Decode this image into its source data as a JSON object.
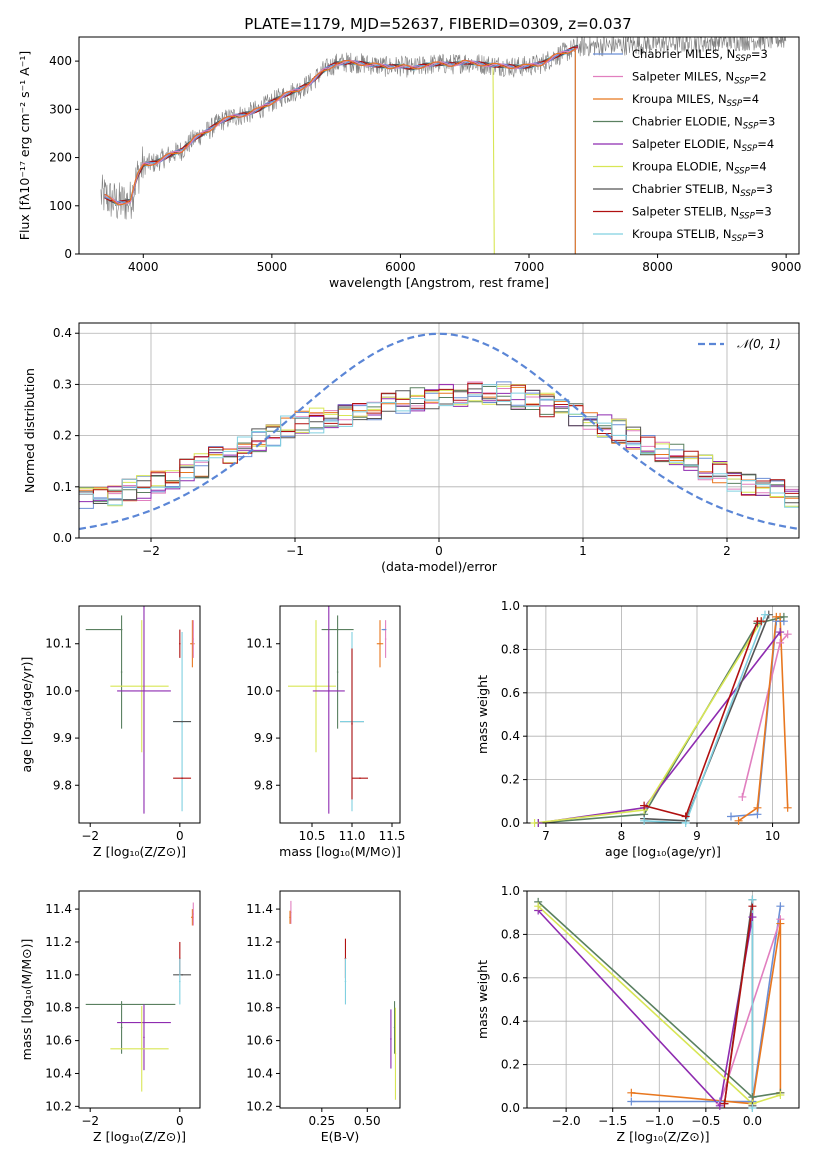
{
  "figure_title": "PLATE=1179, MJD=52637, FIBERID=0309, z=0.037",
  "colors": {
    "Chabrier MILES": "#6b8fd6",
    "Salpeter MILES": "#e17fbf",
    "Kroupa MILES": "#e8771f",
    "Chabrier ELODIE": "#5a8060",
    "Salpeter ELODIE": "#8e2bb0",
    "Kroupa ELODIE": "#d8e655",
    "Chabrier STELIB": "#555555",
    "Salpeter STELIB": "#b01010",
    "Kroupa STELIB": "#80d0e0",
    "data": "#808080",
    "normal": "#5b86d6"
  },
  "chart_data": [
    {
      "id": "spectrum",
      "type": "line",
      "title": "",
      "xlabel": "wavelength [Angstrom, rest frame]",
      "ylabel": "Flux [fλ10⁻¹⁷ erg cm⁻² s⁻¹ A⁻¹]",
      "xlim": [
        3500,
        9100
      ],
      "ylim": [
        0,
        450
      ],
      "xticks": [
        4000,
        5000,
        6000,
        7000,
        8000,
        9000
      ],
      "yticks": [
        0,
        100,
        200,
        300,
        400
      ],
      "legend": [
        {
          "name": "Chabrier MILES",
          "nssp": "3"
        },
        {
          "name": "Salpeter MILES",
          "nssp": "2"
        },
        {
          "name": "Kroupa MILES",
          "nssp": "4"
        },
        {
          "name": "Chabrier ELODIE",
          "nssp": "3"
        },
        {
          "name": "Salpeter ELODIE",
          "nssp": "4"
        },
        {
          "name": "Kroupa ELODIE",
          "nssp": "4"
        },
        {
          "name": "Chabrier STELIB",
          "nssp": "3"
        },
        {
          "name": "Salpeter STELIB",
          "nssp": "3"
        },
        {
          "name": "Kroupa STELIB",
          "nssp": "3"
        }
      ],
      "legend_nssp_prefix": "N",
      "legend_nssp_sub": "SSP",
      "legend_placement": "right",
      "model_curve": {
        "x": [
          3700,
          3800,
          3900,
          3950,
          4000,
          4100,
          4200,
          4300,
          4400,
          4500,
          4600,
          4700,
          4800,
          4900,
          5000,
          5100,
          5200,
          5300,
          5400,
          5500,
          5600,
          5700,
          5800,
          5900,
          6000,
          6100,
          6200,
          6300,
          6400,
          6500,
          6600,
          6700,
          6800,
          6900,
          7000,
          7100,
          7200,
          7300,
          7380
        ],
        "y": [
          120,
          105,
          110,
          160,
          185,
          190,
          205,
          215,
          240,
          255,
          275,
          285,
          290,
          300,
          315,
          330,
          340,
          355,
          380,
          395,
          398,
          395,
          392,
          388,
          390,
          385,
          392,
          395,
          393,
          398,
          395,
          392,
          390,
          388,
          390,
          395,
          410,
          420,
          430
        ]
      },
      "model_cutoffs": [
        {
          "series": "Kroupa ELODIE",
          "wavelength": 6730
        },
        {
          "series": "Kroupa MILES",
          "wavelength": 7360
        },
        {
          "series": "Chabrier MILES",
          "wavelength": 7360
        }
      ],
      "data_range": [
        3670,
        9000
      ]
    },
    {
      "id": "residual_hist",
      "type": "histogram",
      "xlabel": "(data-model)/error",
      "ylabel": "Normed distribution",
      "xlim": [
        -2.5,
        2.5
      ],
      "ylim": [
        0,
        0.42
      ],
      "xticks": [
        -2,
        -1,
        0,
        1,
        2
      ],
      "yticks": [
        0.0,
        0.1,
        0.2,
        0.3,
        0.4
      ],
      "grid": true,
      "bin_width": 0.1,
      "reference_curve": {
        "label": "𝒩(0, 1)",
        "style": "dashed",
        "mean": 0,
        "sigma": 1
      },
      "legend_placement": "top-right",
      "approx_envelope": {
        "x": [
          -2.5,
          -2.0,
          -1.5,
          -1.0,
          -0.5,
          0.0,
          0.5,
          1.0,
          1.5,
          2.0,
          2.5
        ],
        "y": [
          0.075,
          0.1,
          0.16,
          0.22,
          0.25,
          0.28,
          0.28,
          0.24,
          0.18,
          0.12,
          0.08
        ]
      }
    },
    {
      "id": "age_vs_Z",
      "type": "errorbar",
      "xlabel": "Z [log₁₀(Z/Z⊙)]",
      "ylabel": "age  [log₁₀(age/yr)]",
      "xlim": [
        -2.25,
        0.45
      ],
      "ylim": [
        9.72,
        10.18
      ],
      "xticks": [
        -2,
        0
      ],
      "yticks": [
        9.8,
        9.9,
        10.0,
        10.1
      ],
      "points": [
        {
          "series": "Chabrier ELODIE",
          "x": -1.3,
          "xerr": [
            0.8,
            0
          ],
          "y": 10.13,
          "yerr": 0.0
        },
        {
          "series": "Chabrier ELODIE",
          "x": -1.3,
          "xerr": [
            0,
            0
          ],
          "y": 10.04,
          "yerr": 0.12
        },
        {
          "series": "Kroupa ELODIE",
          "x": -0.85,
          "xerr": [
            0.7,
            0.6
          ],
          "y": 10.01,
          "yerr": 0.14
        },
        {
          "series": "Salpeter ELODIE",
          "x": -0.8,
          "xerr": [
            0.6,
            0.6
          ],
          "y": 10.0,
          "yerr": 0.26
        },
        {
          "series": "Kroupa STELIB",
          "x": 0.05,
          "xerr": [
            0.2,
            0.2
          ],
          "y": 9.935,
          "yerr": 0.19
        },
        {
          "series": "Chabrier STELIB",
          "x": 0.05,
          "xerr": [
            0.2,
            0.2
          ],
          "y": 9.935,
          "yerr": 0.0
        },
        {
          "series": "Salpeter STELIB",
          "x": 0.05,
          "xerr": [
            0.2,
            0.2
          ],
          "y": 9.815,
          "yerr": 0.0
        },
        {
          "series": "Salpeter STELIB",
          "x": 0.0,
          "xerr": [
            0,
            0
          ],
          "y": 10.1,
          "yerr": 0.03
        },
        {
          "series": "Kroupa MILES",
          "x": 0.28,
          "xerr": [
            0.05,
            0.05
          ],
          "y": 10.1,
          "yerr": 0.05
        },
        {
          "series": "Salpeter MILES",
          "x": 0.3,
          "xerr": [
            0.0,
            0.0
          ],
          "y": 10.11,
          "yerr": 0.04
        }
      ]
    },
    {
      "id": "age_vs_mass",
      "type": "errorbar",
      "xlabel": "mass [log₁₀(M/M⊙)]",
      "ylabel": "",
      "xlim": [
        10.1,
        11.6
      ],
      "ylim": [
        9.72,
        10.18
      ],
      "xticks": [
        10.5,
        11.0,
        11.5
      ],
      "yticks": [
        9.8,
        9.9,
        10.0,
        10.1
      ],
      "points": [
        {
          "series": "Chabrier ELODIE",
          "x": 10.82,
          "xerr": [
            0.2,
            0.2
          ],
          "y": 10.13,
          "yerr": 0.0
        },
        {
          "series": "Chabrier ELODIE",
          "x": 10.82,
          "xerr": [
            0,
            0
          ],
          "y": 10.04,
          "yerr": 0.12
        },
        {
          "series": "Kroupa ELODIE",
          "x": 10.55,
          "xerr": [
            0.35,
            0.25
          ],
          "y": 10.01,
          "yerr": 0.14
        },
        {
          "series": "Salpeter ELODIE",
          "x": 10.71,
          "xerr": [
            0.2,
            0.2
          ],
          "y": 10.0,
          "yerr": 0.26
        },
        {
          "series": "Chabrier STELIB",
          "x": 11.0,
          "xerr": [
            0.15,
            0.15
          ],
          "y": 9.935,
          "yerr": 0.0
        },
        {
          "series": "Kroupa STELIB",
          "x": 11.0,
          "xerr": [
            0.15,
            0.15
          ],
          "y": 9.935,
          "yerr": 0.19
        },
        {
          "series": "Salpeter STELIB",
          "x": 11.0,
          "xerr": [
            0.0,
            0.0
          ],
          "y": 9.93,
          "yerr": 0.16
        },
        {
          "series": "Salpeter STELIB",
          "x": 11.1,
          "xerr": [
            0.1,
            0.1
          ],
          "y": 9.815,
          "yerr": 0.0
        },
        {
          "series": "Kroupa MILES",
          "x": 11.35,
          "xerr": [
            0.04,
            0.04
          ],
          "y": 10.1,
          "yerr": 0.05
        },
        {
          "series": "Salpeter MILES",
          "x": 11.42,
          "xerr": [
            0.0,
            0.0
          ],
          "y": 10.11,
          "yerr": 0.04
        },
        {
          "series": "Chabrier MILES",
          "x": 11.4,
          "xerr": [
            0.03,
            0.03
          ],
          "y": 10.13,
          "yerr": 0.0
        }
      ]
    },
    {
      "id": "massweight_vs_age",
      "type": "line",
      "xlabel": "age  [log₁₀(age/yr)]",
      "ylabel": "mass weight",
      "xlim": [
        6.75,
        10.35
      ],
      "ylim": [
        0.0,
        1.0
      ],
      "xticks": [
        7,
        8,
        9,
        10
      ],
      "yticks": [
        0.0,
        0.2,
        0.4,
        0.6,
        0.8,
        1.0
      ],
      "grid": true,
      "series": [
        {
          "name": "Chabrier MILES",
          "x": [
            9.45,
            9.8,
            10.05,
            10.15
          ],
          "y": [
            0.03,
            0.04,
            0.93,
            0.93
          ]
        },
        {
          "name": "Salpeter MILES",
          "x": [
            9.6,
            10.1,
            10.2
          ],
          "y": [
            0.12,
            0.83,
            0.87
          ]
        },
        {
          "name": "Kroupa MILES",
          "x": [
            9.55,
            9.8,
            10.05,
            10.1,
            10.2
          ],
          "y": [
            0.01,
            0.07,
            0.95,
            0.95,
            0.07
          ]
        },
        {
          "name": "Chabrier ELODIE",
          "x": [
            6.9,
            8.3,
            9.8,
            10.15
          ],
          "y": [
            0.0,
            0.04,
            0.92,
            0.95
          ]
        },
        {
          "name": "Salpeter ELODIE",
          "x": [
            6.9,
            8.3,
            10.1
          ],
          "y": [
            0.0,
            0.07,
            0.88
          ]
        },
        {
          "name": "Kroupa ELODIE",
          "x": [
            6.85,
            8.3,
            9.85
          ],
          "y": [
            0.0,
            0.06,
            0.93
          ]
        },
        {
          "name": "Chabrier STELIB",
          "x": [
            8.3,
            8.85,
            9.95
          ],
          "y": [
            0.02,
            0.01,
            0.96
          ]
        },
        {
          "name": "Salpeter STELIB",
          "x": [
            8.3,
            8.85,
            9.8,
            9.85
          ],
          "y": [
            0.08,
            0.03,
            0.93,
            0.93
          ]
        },
        {
          "name": "Kroupa STELIB",
          "x": [
            8.3,
            8.85,
            9.9
          ],
          "y": [
            0.01,
            0.0,
            0.96
          ]
        }
      ]
    },
    {
      "id": "mass_vs_Z",
      "type": "errorbar",
      "xlabel": "Z [log₁₀(Z/Z⊙)]",
      "ylabel": "mass [log₁₀(M/M⊙)]",
      "xlim": [
        -2.25,
        0.45
      ],
      "ylim": [
        10.19,
        11.51
      ],
      "xticks": [
        -2,
        0
      ],
      "yticks": [
        10.2,
        10.4,
        10.6,
        10.8,
        11.0,
        11.2,
        11.4
      ],
      "points": [
        {
          "series": "Chabrier ELODIE",
          "x": -1.3,
          "xerr": [
            0.8,
            1.2
          ],
          "y": 10.82,
          "yerr": 0.0
        },
        {
          "series": "Chabrier ELODIE",
          "x": -1.3,
          "xerr": [
            0,
            0
          ],
          "y": 10.68,
          "yerr": 0.16
        },
        {
          "series": "Salpeter ELODIE",
          "x": -0.8,
          "xerr": [
            0.6,
            0.6
          ],
          "y": 10.71,
          "yerr": 0.0
        },
        {
          "series": "Salpeter ELODIE",
          "x": -0.8,
          "xerr": [
            0,
            0
          ],
          "y": 10.62,
          "yerr": 0.2
        },
        {
          "series": "Kroupa ELODIE",
          "x": -0.85,
          "xerr": [
            0.7,
            0.6
          ],
          "y": 10.55,
          "yerr": 0.0
        },
        {
          "series": "Kroupa ELODIE",
          "x": -0.85,
          "xerr": [
            0,
            0
          ],
          "y": 10.55,
          "yerr": 0.26
        },
        {
          "series": "Chabrier STELIB",
          "x": 0.05,
          "xerr": [
            0.2,
            0.2
          ],
          "y": 11.0,
          "yerr": 0.0
        },
        {
          "series": "Salpeter STELIB",
          "x": 0.0,
          "xerr": [
            0,
            0
          ],
          "y": 11.1,
          "yerr": 0.1
        },
        {
          "series": "Kroupa STELIB",
          "x": 0.0,
          "xerr": [
            0,
            0
          ],
          "y": 10.96,
          "yerr": 0.14
        },
        {
          "series": "Kroupa MILES",
          "x": 0.28,
          "xerr": [
            0.03,
            0.03
          ],
          "y": 11.35,
          "yerr": 0.05
        },
        {
          "series": "Salpeter MILES",
          "x": 0.3,
          "xerr": [
            0,
            0
          ],
          "y": 11.37,
          "yerr": 0.07
        }
      ]
    },
    {
      "id": "mass_vs_EBV",
      "type": "errorbar",
      "xlabel": "E(B-V)",
      "ylabel": "",
      "xlim": [
        0.02,
        0.68
      ],
      "ylim": [
        10.19,
        11.51
      ],
      "xticks": [
        0.25,
        0.5
      ],
      "yticks": [
        10.2,
        10.4,
        10.6,
        10.8,
        11.0,
        11.2,
        11.4
      ],
      "points": [
        {
          "series": "Salpeter MILES",
          "x": 0.08,
          "xerr": [
            0,
            0
          ],
          "y": 11.38,
          "yerr": 0.07
        },
        {
          "series": "Kroupa MILES",
          "x": 0.075,
          "xerr": [
            0,
            0
          ],
          "y": 11.35,
          "yerr": 0.04
        },
        {
          "series": "Salpeter STELIB",
          "x": 0.38,
          "xerr": [
            0,
            0
          ],
          "y": 11.1,
          "yerr": 0.12
        },
        {
          "series": "Kroupa STELIB",
          "x": 0.38,
          "xerr": [
            0,
            0
          ],
          "y": 10.96,
          "yerr": 0.14
        },
        {
          "series": "Salpeter ELODIE",
          "x": 0.63,
          "xerr": [
            0,
            0
          ],
          "y": 10.61,
          "yerr": 0.18
        },
        {
          "series": "Chabrier ELODIE",
          "x": 0.65,
          "xerr": [
            0,
            0
          ],
          "y": 10.68,
          "yerr": 0.16
        },
        {
          "series": "Kroupa ELODIE",
          "x": 0.655,
          "xerr": [
            0,
            0
          ],
          "y": 10.52,
          "yerr": 0.28
        }
      ]
    },
    {
      "id": "massweight_vs_Z",
      "type": "line",
      "xlabel": "Z [log₁₀(Z/Z⊙)]",
      "ylabel": "mass weight",
      "xlim": [
        -2.42,
        0.5
      ],
      "ylim": [
        0.0,
        1.0
      ],
      "xticks": [
        -2.0,
        -1.5,
        -1.0,
        -0.5,
        0.0
      ],
      "yticks": [
        0.0,
        0.2,
        0.4,
        0.6,
        0.8,
        1.0
      ],
      "grid": true,
      "series": [
        {
          "name": "Chabrier MILES",
          "x": [
            -1.3,
            -0.35,
            0.0,
            0.3
          ],
          "y": [
            0.03,
            0.03,
            0.03,
            0.93
          ]
        },
        {
          "name": "Salpeter MILES",
          "x": [
            -0.35,
            0.3
          ],
          "y": [
            0.02,
            0.87
          ]
        },
        {
          "name": "Kroupa MILES",
          "x": [
            -1.3,
            0.0,
            0.3,
            0.3
          ],
          "y": [
            0.07,
            0.02,
            0.85,
            0.07
          ]
        },
        {
          "name": "Chabrier ELODIE",
          "x": [
            -2.3,
            0.0,
            0.3
          ],
          "y": [
            0.95,
            0.05,
            0.07
          ]
        },
        {
          "name": "Salpeter ELODIE",
          "x": [
            -2.3,
            -0.35,
            0.0
          ],
          "y": [
            0.91,
            0.01,
            0.88
          ]
        },
        {
          "name": "Kroupa ELODIE",
          "x": [
            -2.3,
            0.0,
            0.3
          ],
          "y": [
            0.93,
            0.02,
            0.06
          ]
        },
        {
          "name": "Chabrier STELIB",
          "x": [
            -0.3,
            0.0,
            0.0
          ],
          "y": [
            0.02,
            0.96,
            0.01
          ]
        },
        {
          "name": "Salpeter STELIB",
          "x": [
            -0.3,
            0.0
          ],
          "y": [
            0.02,
            0.93
          ]
        },
        {
          "name": "Kroupa STELIB",
          "x": [
            0.0,
            0.0
          ],
          "y": [
            0.0,
            0.96
          ]
        }
      ]
    }
  ]
}
